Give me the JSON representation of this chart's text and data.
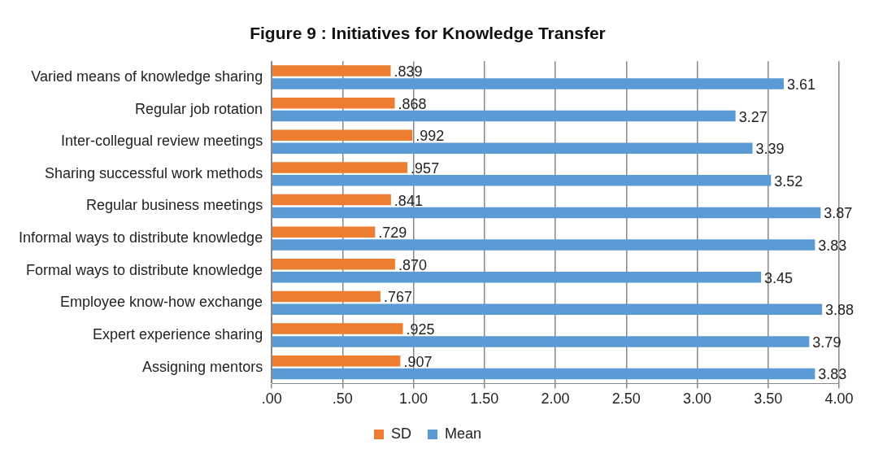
{
  "chart_data": {
    "type": "bar",
    "orientation": "horizontal",
    "title": "Figure 9 : Initiatives for Knowledge Transfer",
    "categories": [
      "Varied means of knowledge sharing",
      "Regular job rotation",
      "Inter-collegual review meetings",
      "Sharing successful work methods",
      "Regular business meetings",
      "Informal ways to distribute knowledge",
      "Formal ways to distribute knowledge",
      "Employee know-how exchange",
      "Expert experience sharing",
      "Assigning mentors"
    ],
    "series": [
      {
        "name": "SD",
        "color": "#ed7d31",
        "values": [
          0.839,
          0.868,
          0.992,
          0.957,
          0.841,
          0.729,
          0.87,
          0.767,
          0.925,
          0.907
        ],
        "value_labels": [
          ".839",
          ".868",
          ".992",
          ".957",
          ".841",
          ".729",
          ".870",
          ".767",
          ".925",
          ".907"
        ]
      },
      {
        "name": "Mean",
        "color": "#5b9bd5",
        "values": [
          3.61,
          3.27,
          3.39,
          3.52,
          3.87,
          3.83,
          3.45,
          3.88,
          3.79,
          3.83
        ],
        "value_labels": [
          "3.61",
          "3.27",
          "3.39",
          "3.52",
          "3.87",
          "3.83",
          "3.45",
          "3.88",
          "3.79",
          "3.83"
        ]
      }
    ],
    "xlim": [
      0,
      4
    ],
    "xticks": [
      {
        "value": 0,
        "label": ".00"
      },
      {
        "value": 0.5,
        "label": ".50"
      },
      {
        "value": 1,
        "label": "1.00"
      },
      {
        "value": 1.5,
        "label": "1.50"
      },
      {
        "value": 2,
        "label": "2.00"
      },
      {
        "value": 2.5,
        "label": "2.50"
      },
      {
        "value": 3,
        "label": "3.00"
      },
      {
        "value": 3.5,
        "label": "3.50"
      },
      {
        "value": 4,
        "label": "4.00"
      }
    ],
    "grid": "x",
    "legend": "bottom"
  }
}
